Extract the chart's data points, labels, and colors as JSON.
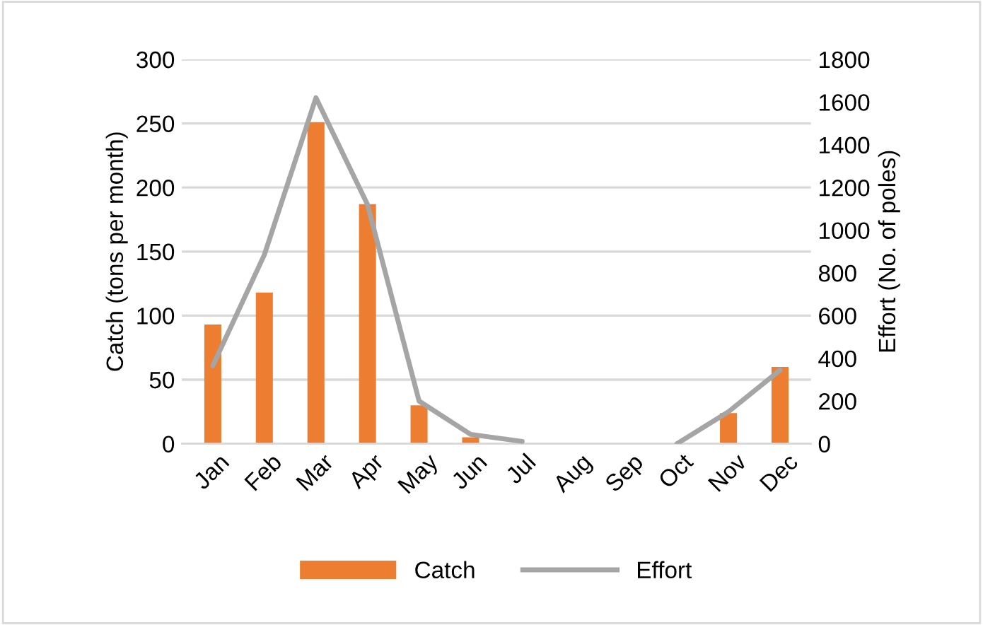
{
  "chart_data": {
    "type": "bar",
    "categories": [
      "Jan",
      "Feb",
      "Mar",
      "Apr",
      "May",
      "Jun",
      "Jul",
      "Aug",
      "Sep",
      "Oct",
      "Nov",
      "Dec"
    ],
    "ylabel": "Catch (tons per month)",
    "y2label": "Effort (No. of poles)",
    "series": [
      {
        "name": "Catch",
        "color": "#ed7d31",
        "values": [
          93,
          118,
          251,
          187,
          30,
          5,
          null,
          null,
          null,
          null,
          24,
          60
        ]
      },
      {
        "name": "Effort",
        "type": "line",
        "axis": "y2",
        "color": "#a5a5a5",
        "values": [
          365,
          885,
          1620,
          1120,
          200,
          44,
          11,
          null,
          null,
          0,
          150,
          345
        ]
      }
    ],
    "ylim": [
      0,
      300
    ],
    "yticks": [
      0,
      50,
      100,
      150,
      200,
      250,
      300
    ],
    "y2lim": [
      0,
      1800
    ],
    "y2ticks": [
      0,
      200,
      400,
      600,
      800,
      1000,
      1200,
      1400,
      1600,
      1800
    ],
    "grid": "y",
    "legend": "bottom",
    "marker": "none"
  }
}
